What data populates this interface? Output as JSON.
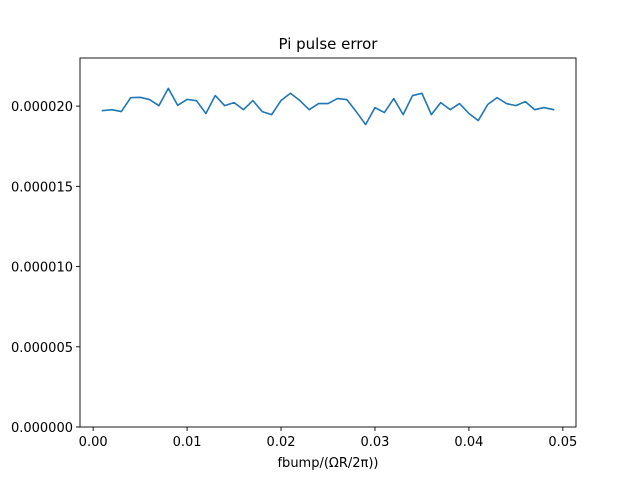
{
  "chart_data": {
    "type": "line",
    "title": "Pi pulse error",
    "xlabel": "fbump/(ΩR/2π))",
    "ylabel": "",
    "xlim": [
      -0.0014,
      0.0514
    ],
    "ylim": [
      0.0,
      2.3e-05
    ],
    "x_ticks": [
      0.0,
      0.01,
      0.02,
      0.03,
      0.04,
      0.05
    ],
    "x_tick_labels": [
      "0.00",
      "0.01",
      "0.02",
      "0.03",
      "0.04",
      "0.05"
    ],
    "y_ticks": [
      0.0,
      5e-06,
      1e-05,
      1.5e-05,
      2e-05
    ],
    "y_tick_labels": [
      "0.000000",
      "0.000005",
      "0.000010",
      "0.000015",
      "0.000020"
    ],
    "grid": false,
    "line_color": "#1f77b4",
    "series": [
      {
        "x": [
          0.001,
          0.002,
          0.003,
          0.004,
          0.005,
          0.006,
          0.007,
          0.008,
          0.009,
          0.01,
          0.011,
          0.012,
          0.013,
          0.014,
          0.015,
          0.016,
          0.017,
          0.018,
          0.019,
          0.02,
          0.021,
          0.022,
          0.023,
          0.024,
          0.025,
          0.026,
          0.027,
          0.028,
          0.029,
          0.03,
          0.031,
          0.032,
          0.033,
          0.034,
          0.035,
          0.036,
          0.037,
          0.038,
          0.039,
          0.04,
          0.041,
          0.042,
          0.043,
          0.044,
          0.045,
          0.046,
          0.047,
          0.048,
          0.049
        ],
        "values": [
          1.972e-05,
          1.978e-05,
          1.966e-05,
          2.053e-05,
          2.055e-05,
          2.041e-05,
          2.003e-05,
          2.111e-05,
          2.005e-05,
          2.042e-05,
          2.034e-05,
          1.954e-05,
          2.066e-05,
          2.003e-05,
          2.022e-05,
          1.978e-05,
          2.035e-05,
          1.966e-05,
          1.947e-05,
          2.035e-05,
          2.08e-05,
          2.035e-05,
          1.978e-05,
          2.016e-05,
          2.016e-05,
          2.047e-05,
          2.041e-05,
          1.966e-05,
          1.885e-05,
          1.991e-05,
          1.96e-05,
          2.047e-05,
          1.947e-05,
          2.066e-05,
          2.08e-05,
          1.947e-05,
          2.022e-05,
          1.978e-05,
          2.016e-05,
          1.954e-05,
          1.91e-05,
          2.01e-05,
          2.053e-05,
          2.016e-05,
          2.003e-05,
          2.028e-05,
          1.978e-05,
          1.991e-05,
          1.978e-05
        ]
      }
    ]
  }
}
